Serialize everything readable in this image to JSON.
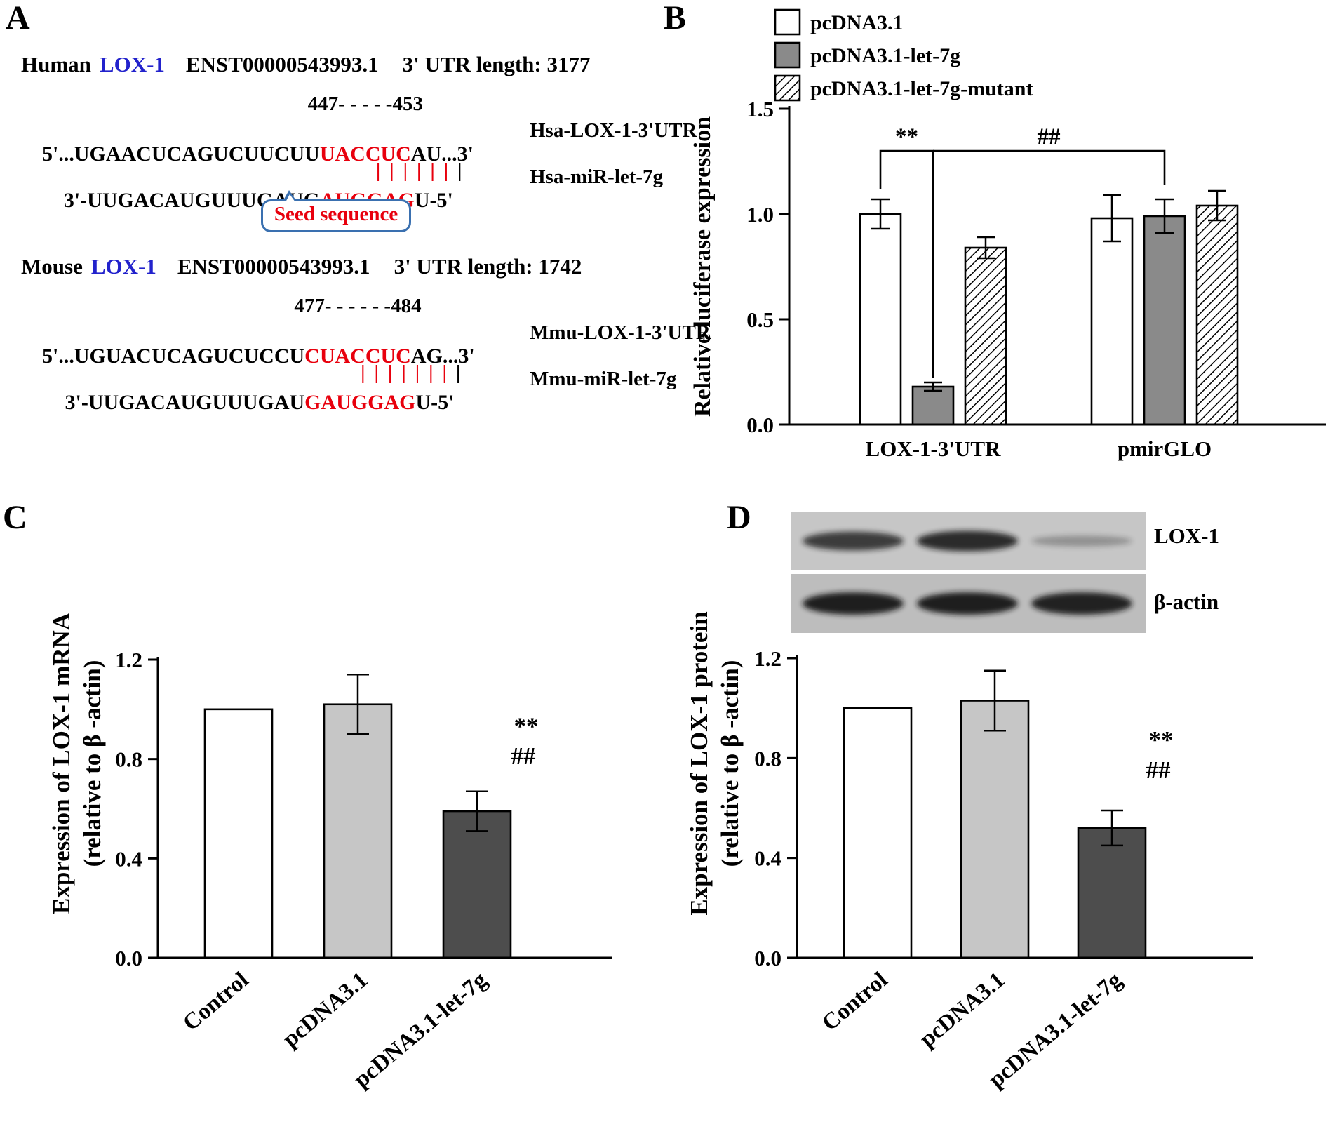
{
  "panels": {
    "a": "A",
    "b": "B",
    "c": "C",
    "d": "D"
  },
  "colors": {
    "seed_red": "#e8000d",
    "gene_blue": "#2222cc",
    "callout_border": "#3a70b0",
    "bar_gray": "#8a8a8a",
    "bar_light_gray": "#c6c6c6",
    "bar_dark_gray": "#4d4d4d"
  },
  "panel_a": {
    "human": {
      "species": "Human",
      "gene": "LOX-1",
      "transcript": "ENST00000543993.1",
      "utr_length": "3' UTR length: 3177",
      "positions": "447- - - - -453",
      "utr": {
        "p1": "5'...UGAACUCAGUCUUCUU",
        "seed": "UACCUC",
        "p2": "AU...3'"
      },
      "utr_label": "Hsa-LOX-1-3'UTR",
      "pairs_red": "||||||",
      "pairs_black": "|",
      "mir": {
        "p1": "3'-UUGACAUGUUUGAUG",
        "seed": "AUGGAG",
        "p2": "U-5'"
      },
      "mir_label": "Hsa-miR-let-7g",
      "seed_callout": "Seed sequence"
    },
    "mouse": {
      "species": "Mouse",
      "gene": "LOX-1",
      "transcript": "ENST00000543993.1",
      "utr_length": "3' UTR length: 1742",
      "positions": "477- - - - - -484",
      "utr": {
        "p1": "5'...UGUACUCAGUCUCCU",
        "seed": "CUACCUC",
        "p2": "AG...3'"
      },
      "utr_label": "Mmu-LOX-1-3'UTR",
      "pairs_red": "|||||||",
      "pairs_black": "|",
      "mir": {
        "p1": "3'-UUGACAUGUUUGAU",
        "seed": "GAUGGAG",
        "p2": "U-5'"
      },
      "mir_label": "Mmu-miR-let-7g"
    }
  },
  "panel_d": {
    "blot": {
      "lanes": 3,
      "rows": [
        {
          "label": "LOX-1",
          "band_intensities": [
            0.78,
            0.88,
            0.3
          ]
        },
        {
          "label": "β-actin",
          "band_intensities": [
            0.95,
            0.95,
            0.93
          ]
        }
      ]
    }
  },
  "chart_data": [
    {
      "id": "chart-b",
      "type": "bar",
      "title": "",
      "ylabel": "Relative luciferase expression",
      "ylim": [
        0.0,
        1.5
      ],
      "yticks": [
        0.0,
        0.5,
        1.0,
        1.5
      ],
      "grid": false,
      "legend": true,
      "legend_position": "top-left-above-plot",
      "categories": [
        "LOX-1-3'UTR",
        "pmirGLO"
      ],
      "series": [
        {
          "name": "pcDNA3.1",
          "fill": "white",
          "values": [
            1.0,
            0.98
          ],
          "errors": [
            0.07,
            0.11
          ]
        },
        {
          "name": "pcDNA3.1-let-7g",
          "fill": "#8a8a8a",
          "values": [
            0.18,
            0.99
          ],
          "errors": [
            0.02,
            0.08
          ]
        },
        {
          "name": "pcDNA3.1-let-7g-mutant",
          "fill": "hatch",
          "values": [
            0.84,
            1.04
          ],
          "errors": [
            0.05,
            0.07
          ]
        }
      ],
      "annotations": [
        {
          "type": "bracket",
          "label": "**",
          "x1": {
            "c": 0,
            "s": 0
          },
          "x2": {
            "c": 0,
            "s": 1
          },
          "top": 1.3,
          "drop1": 1.12,
          "drop2": 0.22
        },
        {
          "type": "bracket",
          "label": "##",
          "x1": {
            "c": 0,
            "s": 1
          },
          "x2": {
            "c": 1,
            "s": 1
          },
          "top": 1.3,
          "drop1": 1.3,
          "drop2": 1.14
        }
      ]
    },
    {
      "id": "chart-c",
      "type": "bar",
      "title": "",
      "ylabel_lines": [
        "Expression of LOX-1 mRNA",
        "(relative to β -actin)"
      ],
      "ylim": [
        0.0,
        1.2
      ],
      "yticks": [
        0.0,
        0.4,
        0.8,
        1.2
      ],
      "grid": false,
      "legend": false,
      "categories": [
        "Control",
        "pcDNA3.1",
        "pcDNA3.1-let-7g"
      ],
      "series": [
        {
          "name": "LOX-1 mRNA",
          "values": [
            1.0,
            1.02,
            0.59
          ],
          "errors": [
            0,
            0.12,
            0.08
          ],
          "fills": [
            "white",
            "#c6c6c6",
            "#4d4d4d"
          ]
        }
      ],
      "annotations": [
        {
          "type": "text",
          "label": "**",
          "x": {
            "c": 2,
            "s": 0
          },
          "y": 0.9,
          "dx": 70
        },
        {
          "type": "text",
          "label": "##",
          "x": {
            "c": 2,
            "s": 0
          },
          "y": 0.78,
          "dx": 66
        }
      ]
    },
    {
      "id": "chart-d",
      "type": "bar",
      "title": "",
      "ylabel_lines": [
        "Expression of LOX-1 protein",
        "(relative to β -actin)"
      ],
      "ylim": [
        0.0,
        1.2
      ],
      "yticks": [
        0.0,
        0.4,
        0.8,
        1.2
      ],
      "grid": false,
      "legend": false,
      "categories": [
        "Control",
        "pcDNA3.1",
        "pcDNA3.1-let-7g"
      ],
      "series": [
        {
          "name": "LOX-1 protein",
          "values": [
            1.0,
            1.03,
            0.52
          ],
          "errors": [
            0,
            0.12,
            0.07
          ],
          "fills": [
            "white",
            "#c6c6c6",
            "#4d4d4d"
          ]
        }
      ],
      "annotations": [
        {
          "type": "text",
          "label": "**",
          "x": {
            "c": 2,
            "s": 0
          },
          "y": 0.84,
          "dx": 70
        },
        {
          "type": "text",
          "label": "##",
          "x": {
            "c": 2,
            "s": 0
          },
          "y": 0.72,
          "dx": 66
        }
      ]
    }
  ]
}
